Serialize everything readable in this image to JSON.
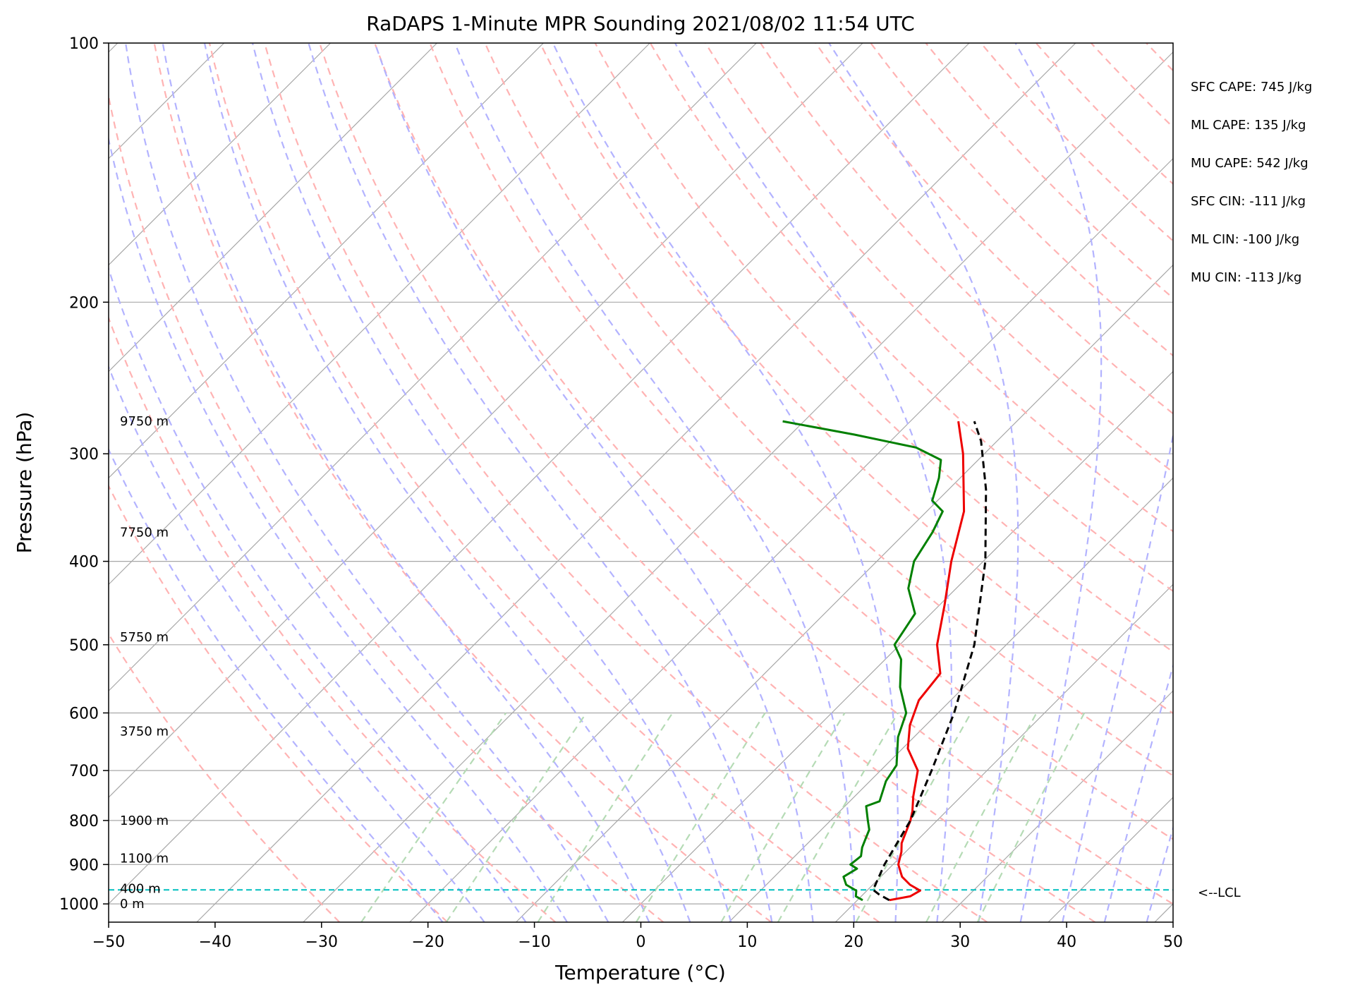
{
  "chart_data": {
    "type": "line",
    "title": "RaDAPS 1-Minute MPR Sounding 2021/08/02 11:54 UTC",
    "xlabel": "Temperature (°C)",
    "ylabel": "Pressure (hPa)",
    "xlim": [
      -50,
      50
    ],
    "ylim": [
      1050,
      100
    ],
    "y_scale": "log",
    "skew": true,
    "x_ticks": [
      "−50",
      "−40",
      "−30",
      "−20",
      "−10",
      "0",
      "10",
      "20",
      "30",
      "40",
      "50"
    ],
    "x_tick_values": [
      -50,
      -40,
      -30,
      -20,
      -10,
      0,
      10,
      20,
      30,
      40,
      50
    ],
    "y_ticks": [
      "100",
      "200",
      "300",
      "400",
      "500",
      "600",
      "700",
      "800",
      "900",
      "1000"
    ],
    "y_tick_values": [
      100,
      200,
      300,
      400,
      500,
      600,
      700,
      800,
      900,
      1000
    ],
    "grid": true,
    "colors": {
      "temperature": "#ee0000",
      "dewpoint": "#008000",
      "parcel": "#000000",
      "lcl": "#00bfbf",
      "isotherm": "#a8a8a8",
      "dry_adiabat": "#ffb3b3",
      "moist_adiabat": "#b3b3ff",
      "mixing_ratio": "#b5dbb5"
    },
    "series": [
      {
        "key": "temperature",
        "points": [
          [
            990,
            23.0
          ],
          [
            980,
            24.6
          ],
          [
            965,
            25.0
          ],
          [
            950,
            23.5
          ],
          [
            930,
            22.0
          ],
          [
            900,
            20.5
          ],
          [
            870,
            19.6
          ],
          [
            850,
            18.8
          ],
          [
            800,
            17.5
          ],
          [
            780,
            16.8
          ],
          [
            750,
            15.5
          ],
          [
            700,
            13.5
          ],
          [
            660,
            10.5
          ],
          [
            620,
            8.5
          ],
          [
            580,
            7.0
          ],
          [
            540,
            6.5
          ],
          [
            500,
            3.5
          ],
          [
            450,
            0.5
          ],
          [
            400,
            -3.0
          ],
          [
            350,
            -6.5
          ],
          [
            300,
            -12.0
          ],
          [
            275,
            -15.5
          ]
        ]
      },
      {
        "key": "dewpoint",
        "points": [
          [
            990,
            20.5
          ],
          [
            980,
            19.5
          ],
          [
            965,
            19.0
          ],
          [
            950,
            17.5
          ],
          [
            930,
            16.5
          ],
          [
            910,
            17.0
          ],
          [
            900,
            16.0
          ],
          [
            880,
            16.2
          ],
          [
            860,
            15.5
          ],
          [
            840,
            15.0
          ],
          [
            820,
            14.5
          ],
          [
            800,
            13.5
          ],
          [
            770,
            12.0
          ],
          [
            760,
            12.8
          ],
          [
            720,
            11.5
          ],
          [
            690,
            11.0
          ],
          [
            640,
            8.5
          ],
          [
            600,
            7.0
          ],
          [
            560,
            4.0
          ],
          [
            520,
            1.5
          ],
          [
            500,
            -0.5
          ],
          [
            460,
            -1.5
          ],
          [
            430,
            -4.5
          ],
          [
            400,
            -6.5
          ],
          [
            370,
            -7.5
          ],
          [
            350,
            -8.5
          ],
          [
            340,
            -10.5
          ],
          [
            320,
            -12.0
          ],
          [
            305,
            -13.5
          ],
          [
            295,
            -17.0
          ],
          [
            285,
            -24.0
          ],
          [
            275,
            -32.0
          ]
        ]
      },
      {
        "key": "parcel",
        "points": [
          [
            990,
            23.0
          ],
          [
            975,
            21.5
          ],
          [
            963,
            20.5
          ],
          [
            900,
            19.2
          ],
          [
            800,
            17.5
          ],
          [
            700,
            14.8
          ],
          [
            600,
            11.5
          ],
          [
            500,
            7.0
          ],
          [
            400,
            0.2
          ],
          [
            330,
            -6.5
          ],
          [
            290,
            -11.5
          ],
          [
            275,
            -14.0
          ]
        ]
      }
    ],
    "lcl_pressure": 963,
    "lcl_label": "<--LCL",
    "height_labels": [
      {
        "text": "9750 m",
        "p": 275
      },
      {
        "text": "7750 m",
        "p": 370
      },
      {
        "text": "5750 m",
        "p": 490
      },
      {
        "text": "3750 m",
        "p": 630
      },
      {
        "text": "1900 m",
        "p": 800
      },
      {
        "text": "1100 m",
        "p": 885
      },
      {
        "text": "400 m",
        "p": 960
      },
      {
        "text": "0 m",
        "p": 1000
      }
    ],
    "stats": [
      "SFC CAPE: 745 J/kg",
      "ML CAPE: 135 J/kg",
      "MU CAPE: 542 J/kg",
      "SFC CIN: -111 J/kg",
      "ML CIN: -100 J/kg",
      "MU CIN: -113 J/kg"
    ]
  }
}
